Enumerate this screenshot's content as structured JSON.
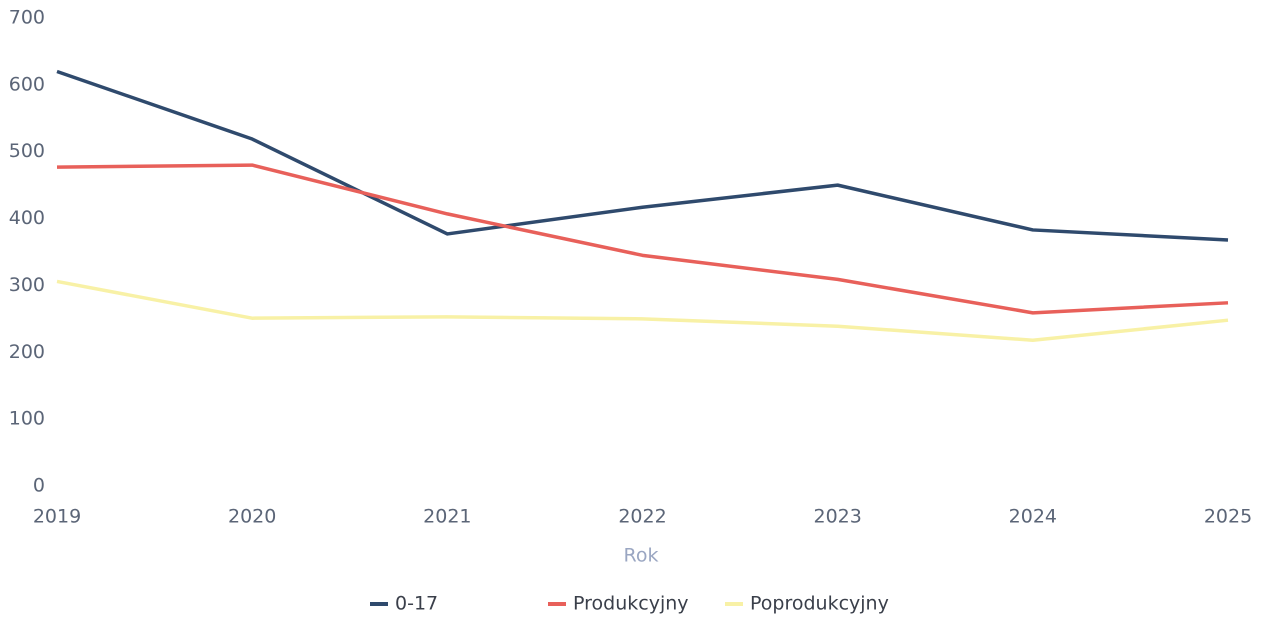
{
  "chart_data": {
    "type": "line",
    "xlabel": "Rok",
    "categories": [
      "2019",
      "2020",
      "2021",
      "2022",
      "2023",
      "2024",
      "2025"
    ],
    "series": [
      {
        "name": "0-17",
        "color": "#2f4a6d",
        "values": [
          620,
          519,
          377,
          417,
          450,
          383,
          368
        ]
      },
      {
        "name": "Produkcyjny",
        "color": "#e8605a",
        "values": [
          477,
          480,
          407,
          345,
          309,
          259,
          274
        ]
      },
      {
        "name": "Poprodukcyjny",
        "color": "#f8f1a6",
        "values": [
          306,
          251,
          253,
          250,
          239,
          218,
          248
        ]
      }
    ],
    "ylim": [
      0,
      700
    ],
    "yticks": [
      0,
      100,
      200,
      300,
      400,
      500,
      600,
      700
    ],
    "grid": false,
    "legend": "bottom"
  }
}
